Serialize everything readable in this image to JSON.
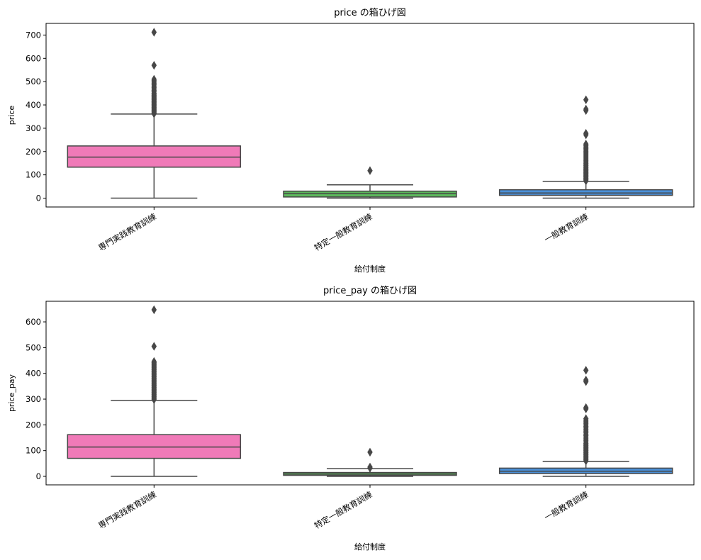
{
  "chart_data": [
    {
      "type": "box",
      "title": "price の箱ひげ図",
      "xlabel": "給付制度",
      "ylabel": "price",
      "ylim": [
        -38,
        750
      ],
      "yticks": [
        0,
        100,
        200,
        300,
        400,
        500,
        600,
        700
      ],
      "categories": [
        "専門実践教育訓練",
        "特定一般教育訓練",
        "一般教育訓練"
      ],
      "colors": [
        "#f07ab8",
        "#5cb85c",
        "#4a90d9"
      ],
      "boxes": [
        {
          "min": 0,
          "q1": 133,
          "median": 176,
          "q3": 224,
          "max": 361,
          "outliers": [
            362,
            366,
            370,
            374,
            378,
            382,
            386,
            390,
            394,
            398,
            402,
            406,
            410,
            414,
            418,
            422,
            426,
            430,
            434,
            438,
            442,
            446,
            450,
            456,
            462,
            468,
            474,
            480,
            486,
            492,
            498,
            504,
            510,
            570,
            712
          ]
        },
        {
          "min": 0,
          "q1": 5,
          "median": 19,
          "q3": 30,
          "max": 57,
          "outliers": [
            118
          ]
        },
        {
          "min": 0,
          "q1": 12,
          "median": 22,
          "q3": 36,
          "max": 72,
          "outliers": [
            74,
            78,
            82,
            86,
            90,
            94,
            98,
            102,
            106,
            110,
            114,
            118,
            122,
            126,
            130,
            135,
            140,
            145,
            150,
            155,
            160,
            166,
            172,
            178,
            184,
            190,
            196,
            202,
            208,
            214,
            220,
            226,
            232,
            272,
            278,
            376,
            382,
            422
          ]
        }
      ]
    },
    {
      "type": "box",
      "title": "price_pay の箱ひげ図",
      "xlabel": "給付制度",
      "ylabel": "price_pay",
      "ylim": [
        -33,
        680
      ],
      "yticks": [
        0,
        100,
        200,
        300,
        400,
        500,
        600
      ],
      "categories": [
        "専門実践教育訓練",
        "特定一般教育訓練",
        "一般教育訓練"
      ],
      "colors": [
        "#f07ab8",
        "#5cb85c",
        "#4a90d9"
      ],
      "boxes": [
        {
          "min": 0,
          "q1": 70,
          "median": 114,
          "q3": 162,
          "max": 295,
          "outliers": [
            298,
            302,
            306,
            310,
            314,
            318,
            322,
            326,
            330,
            334,
            338,
            342,
            346,
            350,
            354,
            358,
            362,
            366,
            370,
            374,
            378,
            382,
            386,
            390,
            394,
            398,
            402,
            406,
            410,
            414,
            418,
            422,
            426,
            430,
            434,
            438,
            442,
            446,
            505,
            647
          ]
        },
        {
          "min": 0,
          "q1": 4,
          "median": 9,
          "q3": 15,
          "max": 30,
          "outliers": [
            32,
            36,
            94
          ]
        },
        {
          "min": 0,
          "q1": 11,
          "median": 20,
          "q3": 32,
          "max": 58,
          "outliers": [
            60,
            64,
            68,
            72,
            76,
            80,
            84,
            88,
            92,
            96,
            100,
            104,
            108,
            112,
            116,
            120,
            124,
            128,
            134,
            140,
            146,
            152,
            158,
            164,
            170,
            176,
            182,
            188,
            194,
            200,
            206,
            212,
            218,
            224,
            262,
            267,
            368,
            374,
            412
          ]
        }
      ]
    }
  ]
}
